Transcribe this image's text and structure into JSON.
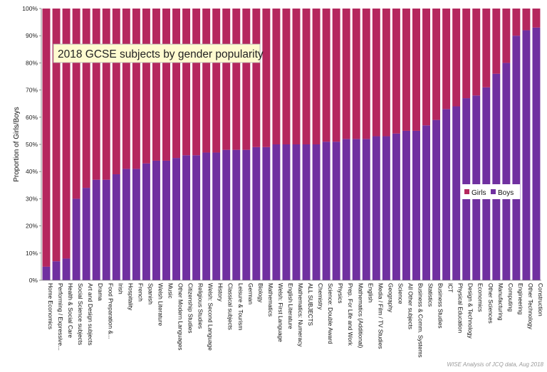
{
  "chart_data": {
    "type": "bar",
    "stacked": true,
    "title": "2018 GCSE subjects by gender popularity",
    "ylabel": "Proportion of Girls/Boys",
    "ylim": [
      0,
      1
    ],
    "y_ticks": [
      "0%",
      "10%",
      "20%",
      "30%",
      "40%",
      "50%",
      "60%",
      "70%",
      "80%",
      "90%",
      "100%"
    ],
    "grid": false,
    "legend_position": "right",
    "colors": {
      "Girls": "#b5275e",
      "Boys": "#7030a0"
    },
    "categories": [
      "Home Economics",
      "Performing / Expressive...",
      "Health & Social Care",
      "Social Science subjects",
      "Art and Design subjects",
      "Drama",
      "Food Preparation &...",
      "Irish",
      "Hospitality",
      "French",
      "Spanish",
      "Welsh Literature",
      "Music",
      "Other Modern Languages",
      "Citizenship Studies",
      "Religious Studies",
      "Welsh: Second Language",
      "History",
      "Classical subjects",
      "Leisure & Tourism",
      "German",
      "Biology",
      "Mathematics",
      "Welsh: First Language",
      "English Literature",
      "Mathematics: Numeracy",
      "ALL SUBJECTS",
      "Chemistry",
      "Science: Double Award",
      "Physics",
      "Prep. For Life and Work",
      "Mathematics (Additional)",
      "English",
      "Media / Film / TV Studies",
      "Geography",
      "Science",
      "All Other subjects",
      "Business & Comm. Systems",
      "Statistics",
      "Business Studies",
      "ICT",
      "Physical Education",
      "Design & Technology",
      "Economics",
      "Other Sciences",
      "Manufacturing",
      "Computing",
      "Engineering",
      "Other Technology",
      "Construction"
    ],
    "series": [
      {
        "name": "Boys",
        "values": [
          0.05,
          0.07,
          0.08,
          0.3,
          0.34,
          0.37,
          0.37,
          0.39,
          0.41,
          0.41,
          0.43,
          0.44,
          0.44,
          0.45,
          0.46,
          0.46,
          0.47,
          0.47,
          0.48,
          0.48,
          0.48,
          0.49,
          0.49,
          0.5,
          0.5,
          0.5,
          0.5,
          0.5,
          0.51,
          0.51,
          0.52,
          0.52,
          0.52,
          0.53,
          0.53,
          0.54,
          0.55,
          0.55,
          0.57,
          0.59,
          0.63,
          0.64,
          0.67,
          0.68,
          0.71,
          0.76,
          0.8,
          0.9,
          0.92,
          0.93
        ]
      },
      {
        "name": "Girls",
        "values": [
          0.95,
          0.93,
          0.92,
          0.7,
          0.66,
          0.63,
          0.63,
          0.61,
          0.59,
          0.59,
          0.57,
          0.56,
          0.56,
          0.55,
          0.54,
          0.54,
          0.53,
          0.53,
          0.52,
          0.52,
          0.52,
          0.51,
          0.51,
          0.5,
          0.5,
          0.5,
          0.5,
          0.5,
          0.49,
          0.49,
          0.48,
          0.48,
          0.48,
          0.47,
          0.47,
          0.46,
          0.45,
          0.45,
          0.43,
          0.41,
          0.37,
          0.36,
          0.33,
          0.32,
          0.29,
          0.24,
          0.2,
          0.1,
          0.08,
          0.07
        ]
      }
    ],
    "legend": [
      "Girls",
      "Boys"
    ],
    "source_note": "WISE Analysis of JCQ data, Aug 2018"
  }
}
